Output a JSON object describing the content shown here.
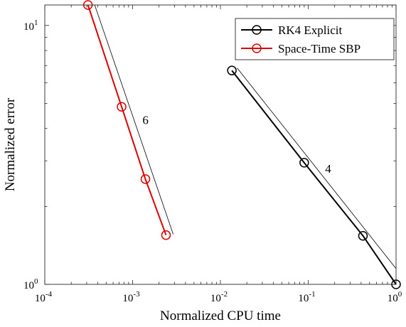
{
  "chart_data": {
    "type": "line",
    "title": "",
    "xlabel": "Normalized CPU time",
    "ylabel": "Normalized error",
    "xscale": "log",
    "yscale": "log",
    "xlim": [
      0.0001,
      1
    ],
    "ylim": [
      1,
      12
    ],
    "grid": false,
    "legend_position": "top-right",
    "x_ticks": [
      {
        "value": 0.0001,
        "base": "10",
        "exp": "-4"
      },
      {
        "value": 0.001,
        "base": "10",
        "exp": "-3"
      },
      {
        "value": 0.01,
        "base": "10",
        "exp": "-2"
      },
      {
        "value": 0.1,
        "base": "10",
        "exp": "-1"
      },
      {
        "value": 1,
        "base": "10",
        "exp": "0"
      }
    ],
    "y_ticks": [
      {
        "value": 1,
        "base": "10",
        "exp": "0"
      },
      {
        "value": 10,
        "base": "10",
        "exp": "1"
      }
    ],
    "series": [
      {
        "name": "RK4 Explicit",
        "color": "#000000",
        "marker": "circle",
        "x": [
          0.0135,
          0.09,
          0.42,
          1.0
        ],
        "y": [
          6.7,
          2.95,
          1.54,
          1.0
        ]
      },
      {
        "name": "Space-Time SBP",
        "color": "#e00000",
        "marker": "circle",
        "x": [
          0.00031,
          0.00075,
          0.0014,
          0.0024
        ],
        "y": [
          12.0,
          4.85,
          2.55,
          1.55
        ]
      }
    ],
    "reference_lines": [
      {
        "label": "4",
        "x": [
          0.0155,
          1.0
        ],
        "y": [
          6.85,
          1.15
        ]
      },
      {
        "label": "6",
        "x": [
          0.00037,
          0.0029
        ],
        "y": [
          12.0,
          1.56
        ]
      }
    ]
  }
}
